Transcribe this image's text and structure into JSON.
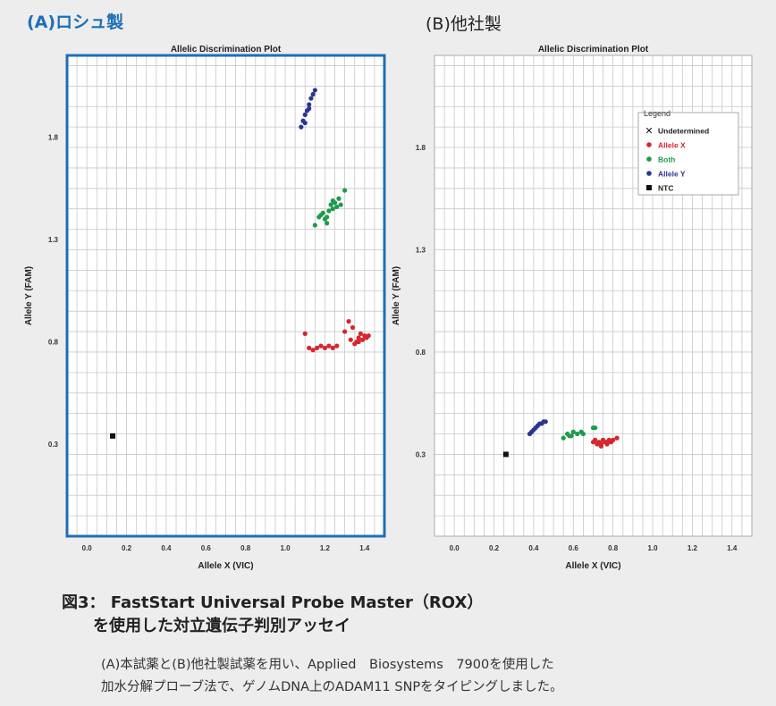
{
  "panel_a_title": "(A)ロシュ製",
  "panel_b_title": "(B)他社製",
  "caption": {
    "fig_line1": "図3： FastStart Universal Probe Master（ROX）",
    "fig_line2": "を使用した対立遺伝子判別アッセイ",
    "body_line1": "(A)本試薬と(B)他社製試薬を用い、Applied　Biosystems　7900を使用した",
    "body_line2": "加水分解プローブ法で、ゲノムDNA上のADAM11 SNPをタイピングしました。"
  },
  "colors": {
    "allele_x": "#d6262e",
    "both": "#1e9a4c",
    "allele_y": "#2b3590",
    "ntc": "#111111",
    "accent": "#1e6fb5"
  },
  "chart_data": [
    {
      "type": "scatter",
      "title": "Allelic Discrimination Plot",
      "xlabel": "Allele X (VIC)",
      "ylabel": "Allele Y (FAM)",
      "xticks": [
        "0.0",
        "0.2",
        "0.4",
        "0.6",
        "0.8",
        "1.0",
        "1.2",
        "1.4"
      ],
      "yticks": [
        "0.3",
        "0.8",
        "1.3",
        "1.8"
      ],
      "xlim": [
        -0.1,
        1.5
      ],
      "ylim": [
        -0.15,
        2.2
      ],
      "grid": true,
      "series": [
        {
          "name": "Allele X",
          "color": "#d6262e",
          "x": [
            1.1,
            1.12,
            1.14,
            1.16,
            1.18,
            1.2,
            1.22,
            1.24,
            1.26,
            1.3,
            1.32,
            1.33,
            1.35,
            1.36,
            1.37,
            1.38,
            1.39,
            1.4,
            1.41,
            1.42,
            1.34,
            1.37
          ],
          "y": [
            0.84,
            0.77,
            0.76,
            0.77,
            0.78,
            0.77,
            0.78,
            0.77,
            0.78,
            0.85,
            0.9,
            0.81,
            0.79,
            0.8,
            0.82,
            0.84,
            0.81,
            0.83,
            0.82,
            0.83,
            0.87,
            0.8
          ]
        },
        {
          "name": "Both",
          "color": "#1e9a4c",
          "x": [
            1.15,
            1.17,
            1.19,
            1.2,
            1.21,
            1.22,
            1.23,
            1.24,
            1.25,
            1.26,
            1.27,
            1.28,
            1.3,
            1.18,
            1.21,
            1.24
          ],
          "y": [
            1.37,
            1.41,
            1.43,
            1.4,
            1.38,
            1.44,
            1.47,
            1.45,
            1.48,
            1.46,
            1.5,
            1.47,
            1.54,
            1.42,
            1.41,
            1.49
          ]
        },
        {
          "name": "Allele Y",
          "color": "#2b3590",
          "x": [
            1.08,
            1.09,
            1.1,
            1.11,
            1.12,
            1.13,
            1.14,
            1.15,
            1.1,
            1.12
          ],
          "y": [
            1.85,
            1.88,
            1.91,
            1.93,
            1.96,
            1.99,
            2.01,
            2.03,
            1.87,
            1.94
          ]
        },
        {
          "name": "NTC",
          "color": "#111111",
          "x": [
            0.13
          ],
          "y": [
            0.34
          ]
        }
      ]
    },
    {
      "type": "scatter",
      "title": "Allelic Discrimination Plot",
      "xlabel": "Allele X (VIC)",
      "ylabel": "Allele Y (FAM)",
      "xticks": [
        "0.0",
        "0.2",
        "0.4",
        "0.6",
        "0.8",
        "1.0",
        "1.2",
        "1.4"
      ],
      "yticks": [
        "0.3",
        "0.8",
        "1.3",
        "1.8"
      ],
      "xlim": [
        -0.1,
        1.5
      ],
      "ylim": [
        -0.1,
        2.25
      ],
      "grid": true,
      "legend": {
        "title": "Legend",
        "position": "top-right",
        "entries": [
          "Undetermined",
          "Allele X",
          "Both",
          "Allele Y",
          "NTC"
        ]
      },
      "series": [
        {
          "name": "Allele X",
          "color": "#d6262e",
          "x": [
            0.7,
            0.72,
            0.73,
            0.74,
            0.75,
            0.76,
            0.77,
            0.78,
            0.79,
            0.8,
            0.82,
            0.71,
            0.74,
            0.77
          ],
          "y": [
            0.36,
            0.35,
            0.36,
            0.34,
            0.37,
            0.36,
            0.35,
            0.37,
            0.36,
            0.37,
            0.38,
            0.37,
            0.35,
            0.36
          ]
        },
        {
          "name": "Both",
          "color": "#1e9a4c",
          "x": [
            0.55,
            0.57,
            0.59,
            0.6,
            0.62,
            0.64,
            0.65,
            0.7,
            0.71,
            0.58
          ],
          "y": [
            0.38,
            0.4,
            0.39,
            0.41,
            0.4,
            0.41,
            0.4,
            0.43,
            0.43,
            0.39
          ]
        },
        {
          "name": "Allele Y",
          "color": "#2b3590",
          "x": [
            0.38,
            0.4,
            0.41,
            0.42,
            0.43,
            0.44,
            0.45,
            0.46,
            0.39
          ],
          "y": [
            0.4,
            0.42,
            0.43,
            0.44,
            0.45,
            0.45,
            0.46,
            0.46,
            0.41
          ]
        },
        {
          "name": "NTC",
          "color": "#111111",
          "x": [
            0.26
          ],
          "y": [
            0.3
          ]
        }
      ]
    }
  ]
}
